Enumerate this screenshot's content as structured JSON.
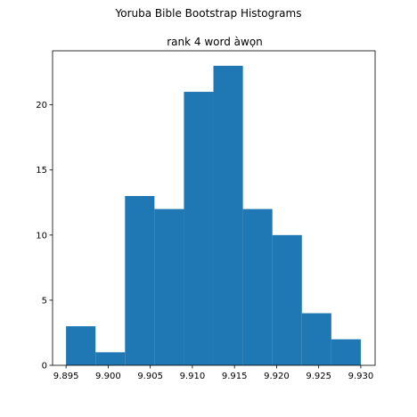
{
  "figure": {
    "suptitle": "Yoruba Bible Bootstrap Histograms"
  },
  "chart_data": {
    "type": "bar",
    "title": "rank 4 word àwọn",
    "xlabel": "",
    "ylabel": "",
    "bar_color": "#1f77b4",
    "xlim": [
      9.8934,
      9.9317
    ],
    "ylim": [
      0,
      24.15
    ],
    "grid": false,
    "legend": "none",
    "bins": [
      {
        "x0": 9.895,
        "x1": 9.8985,
        "count": 3
      },
      {
        "x0": 9.8985,
        "x1": 9.902,
        "count": 1
      },
      {
        "x0": 9.902,
        "x1": 9.9055,
        "count": 13
      },
      {
        "x0": 9.9055,
        "x1": 9.909,
        "count": 12
      },
      {
        "x0": 9.909,
        "x1": 9.9125,
        "count": 21
      },
      {
        "x0": 9.9125,
        "x1": 9.916,
        "count": 23
      },
      {
        "x0": 9.916,
        "x1": 9.9195,
        "count": 12
      },
      {
        "x0": 9.9195,
        "x1": 9.923,
        "count": 10
      },
      {
        "x0": 9.923,
        "x1": 9.9265,
        "count": 4
      },
      {
        "x0": 9.9265,
        "x1": 9.93,
        "count": 2
      }
    ],
    "x_ticks": [
      {
        "value": 9.895,
        "label": "9.895"
      },
      {
        "value": 9.9,
        "label": "9.900"
      },
      {
        "value": 9.905,
        "label": "9.905"
      },
      {
        "value": 9.91,
        "label": "9.910"
      },
      {
        "value": 9.915,
        "label": "9.915"
      },
      {
        "value": 9.92,
        "label": "9.920"
      },
      {
        "value": 9.925,
        "label": "9.925"
      },
      {
        "value": 9.93,
        "label": "9.930"
      }
    ],
    "y_ticks": [
      {
        "value": 0,
        "label": "0"
      },
      {
        "value": 5,
        "label": "5"
      },
      {
        "value": 10,
        "label": "10"
      },
      {
        "value": 15,
        "label": "15"
      },
      {
        "value": 20,
        "label": "20"
      }
    ]
  }
}
